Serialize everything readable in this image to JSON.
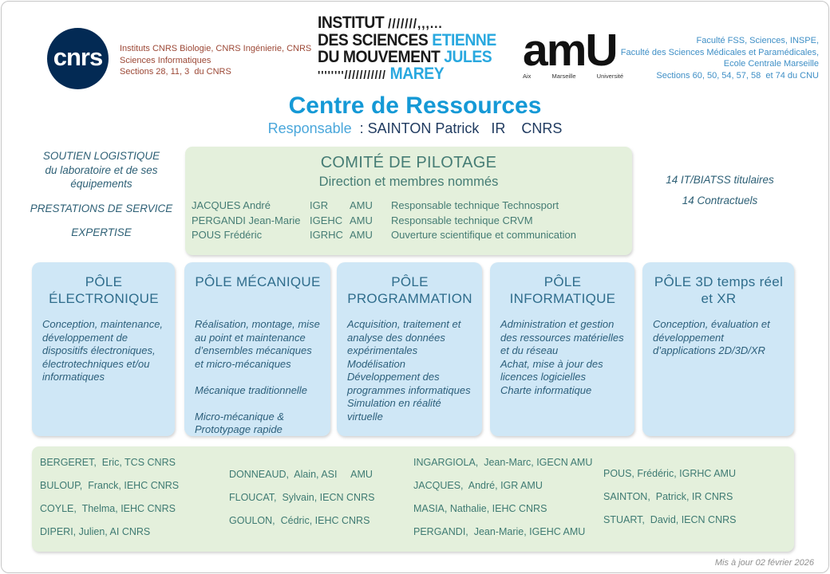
{
  "colors": {
    "title_blue": "#1599D6",
    "responsable_light_blue": "#4AA7DB",
    "navy_text": "#1F3A5F",
    "cnrs_red_text": "#9C4836",
    "cnrs_logo_navy": "#032A54",
    "ism_logo_blue": "#29A8DF",
    "amu_text_blue": "#3F8FC6",
    "green_box_fill": "#E4F0DC",
    "green_box_text": "#457C74",
    "blue_box_fill": "#CFE7F6",
    "blue_box_title": "#2F6D8C",
    "blue_box_body": "#2C5F7B",
    "missions_text": "#2E6076",
    "footer_gray": "#8F8F8F"
  },
  "header": {
    "cnrs": {
      "logo_text": "cnrs",
      "lines": "Instituts CNRS Biologie, CNRS Ingénierie, CNRS\nSciences Informatiques\nSections 28, 11, 3  du CNRS"
    },
    "ism": {
      "line1_black": "INSTITUT ",
      "line1_deco": "///////,,,...",
      "line2_black": "DES SCIENCES ",
      "line2_blue": "ETIENNE",
      "line3_black": "DU MOUVEMENT ",
      "line3_blue": "JULES",
      "line4_deco": "''''''''/////////// ",
      "line4_blue": "MAREY"
    },
    "amu": {
      "logo_text": "amU",
      "sub1": "Aix",
      "sub2": "Marseille",
      "sub3": "Université",
      "lines": "Faculté FSS, Sciences, INSPE,\nFaculté des Sciences Médicales et Paramédicales,\nEcole Centrale Marseille\nSections 60, 50, 54, 57, 58  et 74 du CNU"
    }
  },
  "title": {
    "main": "Centre de Ressources",
    "responsable_label": "Responsable  ",
    "responsable_value": ": SAINTON Patrick   IR    CNRS"
  },
  "missions": {
    "items": [
      "SOUTIEN LOGISTIQUE\ndu laboratoire et de ses\néquipements",
      "PRESTATIONS DE SERVICE",
      "EXPERTISE"
    ]
  },
  "comite": {
    "title": "COMITÉ DE PILOTAGE",
    "subtitle": "Direction et membres nommés",
    "members": [
      {
        "name": "JACQUES André",
        "grade": "IGR",
        "org": "AMU",
        "role": "Responsable technique Technosport"
      },
      {
        "name": "PERGANDI Jean-Marie",
        "grade": "IGEHC",
        "org": "AMU",
        "role": "Responsable technique CRVM"
      },
      {
        "name": "POUS Frédéric",
        "grade": "IGRHC",
        "org": "AMU",
        "role": "Ouverture scientifique et communication"
      }
    ]
  },
  "staffing": {
    "line1": "14 IT/BIATSS titulaires",
    "line2": "14 Contractuels"
  },
  "poles": [
    {
      "title": "PÔLE ÉLECTRONIQUE",
      "body": "Conception, maintenance, développement de dispositifs électroniques, électrotechniques et/ou informatiques"
    },
    {
      "title": "PÔLE MÉCANIQUE",
      "body": "Réalisation, montage, mise au point et maintenance d’ensembles mécaniques et micro-mécaniques\n\nMécanique traditionnelle\n\nMicro-mécanique & Prototypage rapide"
    },
    {
      "title": "PÔLE PROGRAMMATION",
      "body": "Acquisition, traitement et analyse des données expérimentales\nModélisation\nDéveloppement des programmes informatiques\nSimulation en réalité virtuelle"
    },
    {
      "title": "PÔLE INFORMATIQUE",
      "body": "Administration et gestion des ressources matérielles\net du réseau\nAchat, mise à jour  des licences logicielles\nCharte informatique"
    },
    {
      "title": "PÔLE 3D temps réel et XR",
      "body": "Conception, évaluation et développement d’applications 2D/3D/XR"
    }
  ],
  "staff": {
    "col1": [
      "BERGERET,  Eric, TCS CNRS",
      "BULOUP,  Franck, IEHC CNRS",
      "COYLE,  Thelma, IEHC CNRS",
      "DIPERI, Julien, AI CNRS"
    ],
    "col2": [
      "DONNEAUD,  Alain, ASI     AMU",
      "FLOUCAT,  Sylvain, IECN CNRS",
      "GOULON,  Cédric, IEHC CNRS"
    ],
    "col3": [
      "INGARGIOLA,  Jean-Marc, IGECN AMU",
      "JACQUES,  André, IGR AMU",
      "MASIA, Nathalie, IEHC CNRS",
      "PERGANDI,  Jean-Marie, IGEHC AMU"
    ],
    "col4": [
      "POUS, Frédéric, IGRHC AMU",
      "SAINTON,  Patrick, IR CNRS",
      "STUART,  David, IECN CNRS"
    ]
  },
  "footer": {
    "updated": "Mis à jour 02 février 2026"
  }
}
